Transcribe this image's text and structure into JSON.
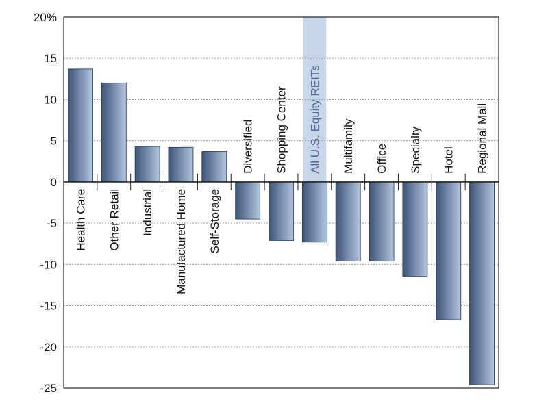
{
  "chart_data": {
    "type": "bar",
    "categories": [
      "Health Care",
      "Other Retail",
      "Industrial",
      "Manufactured Home",
      "Self-Storage",
      "Diversified",
      "Shopping Center",
      "All U.S. Equity REITs",
      "Multifamily",
      "Office",
      "Specialty",
      "Hotel",
      "Regional Mall"
    ],
    "values": [
      13.7,
      12.0,
      4.3,
      4.2,
      3.7,
      -4.5,
      -7.1,
      -7.3,
      -9.6,
      -9.6,
      -11.5,
      -16.7,
      -24.6
    ],
    "highlight_category": "All U.S. Equity REITs",
    "ylim": [
      -25,
      20
    ],
    "yticks": [
      "20%",
      "15",
      "10",
      "5",
      "0",
      "-5",
      "-10",
      "-15",
      "-20",
      "-25"
    ],
    "ytick_values": [
      20,
      15,
      10,
      5,
      0,
      -5,
      -10,
      -15,
      -20,
      -25
    ],
    "grid": "horizontal dotted",
    "colors": {
      "bar_dark": "#3d5478",
      "bar_light": "#b3c5de",
      "highlight_band": "#c8d6ea",
      "highlight_text": "#4a6796",
      "grid": "#9aa3ad",
      "axis": "#222222"
    }
  }
}
